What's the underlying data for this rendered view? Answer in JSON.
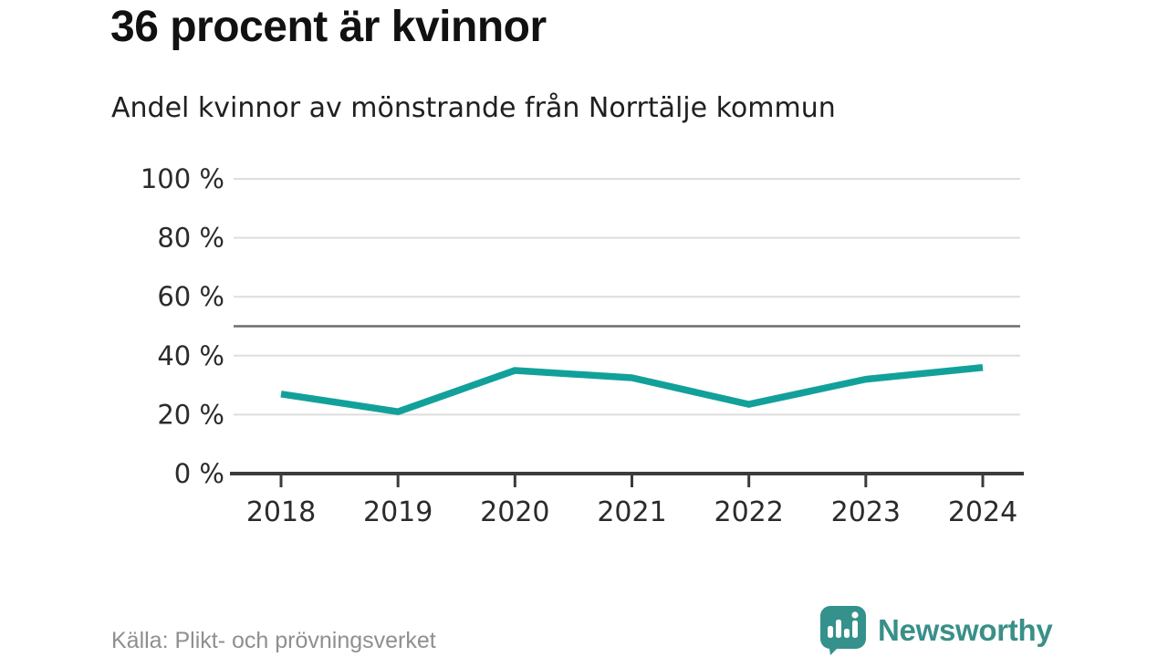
{
  "header": {
    "title": "36 procent är kvinnor",
    "subtitle": "Andel kvinnor av mönstrande från Norrtälje kommun"
  },
  "chart_data": {
    "type": "line",
    "title": "36 procent är kvinnor",
    "subtitle": "Andel kvinnor av mönstrande från Norrtälje kommun",
    "x": [
      "2018",
      "2019",
      "2020",
      "2021",
      "2022",
      "2023",
      "2024"
    ],
    "series": [
      {
        "name": "Andel kvinnor av mönstrande",
        "values": [
          27,
          21,
          35,
          32.5,
          23.5,
          32,
          36
        ]
      }
    ],
    "ylim": [
      0,
      100
    ],
    "yticks": [
      0,
      20,
      40,
      60,
      80,
      100
    ],
    "ytick_suffix": " %",
    "reference_line": 50,
    "grid": true,
    "legend": false,
    "source": "Källa: Plikt- och prövningsverket"
  },
  "footer": {
    "source": "Källa: Plikt- och prövningsverket",
    "brand": "Newsworthy"
  },
  "icons": {
    "logo": "speech-bubble-bar-chart-exclamation-icon"
  },
  "colors": {
    "line": "#12a19a",
    "grid": "#dedede",
    "reference": "#6d6d6d",
    "axis": "#3b3b3b",
    "label": "#2b2b2b",
    "brand": "#3a8f89",
    "muted": "#8f8f8f"
  }
}
